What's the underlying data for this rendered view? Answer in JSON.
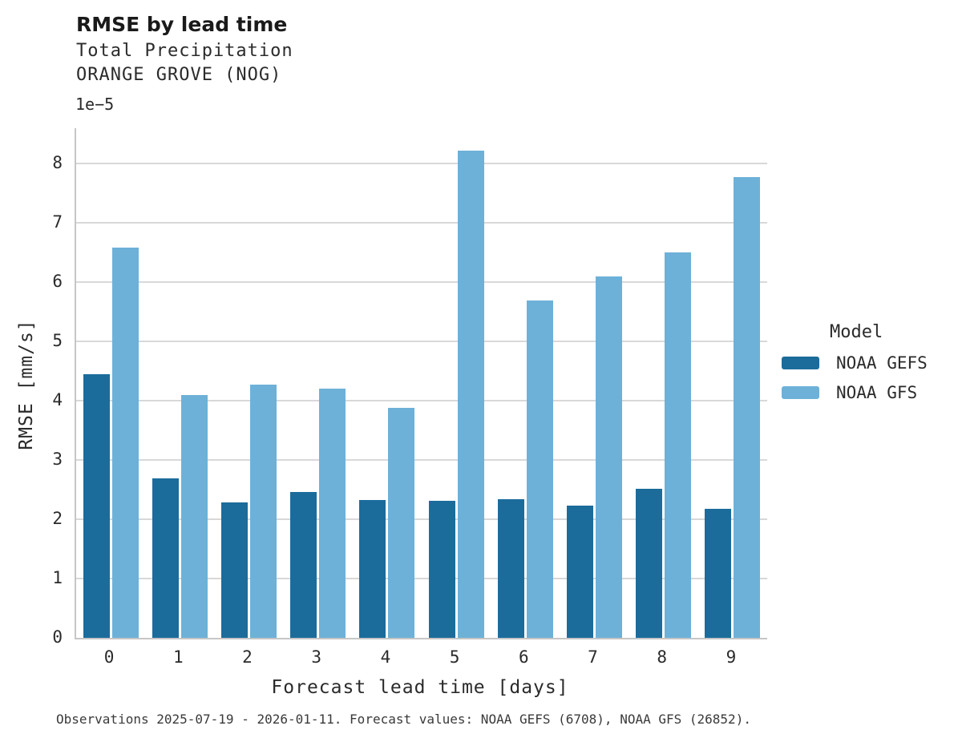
{
  "caption": "Observations 2025-07-19 - 2026-01-11. Forecast values: NOAA GEFS (6708), NOAA GFS (26852).",
  "legend": {
    "title": "Model"
  },
  "chart_data": {
    "type": "bar",
    "title": "RMSE by lead time",
    "subtitle": "Total Precipitation",
    "station": "ORANGE GROVE (NOG)",
    "xlabel": "Forecast lead time [days]",
    "ylabel": "RMSE [mm/s]",
    "y_offset_label": "1e−5",
    "y_unit_scale": "values are ×1e-5 mm/s",
    "categories": [
      "0",
      "1",
      "2",
      "3",
      "4",
      "5",
      "6",
      "7",
      "8",
      "9"
    ],
    "series": [
      {
        "name": "NOAA GEFS",
        "color": "#1b6c9b",
        "values_e5": [
          4.45,
          2.69,
          2.28,
          2.46,
          2.33,
          2.31,
          2.34,
          2.23,
          2.52,
          2.18
        ]
      },
      {
        "name": "NOAA GFS",
        "color": "#6db1d8",
        "values_e5": [
          6.59,
          4.1,
          4.27,
          4.2,
          3.88,
          8.22,
          5.69,
          6.1,
          6.51,
          7.78
        ]
      }
    ],
    "yticks": [
      0,
      1,
      2,
      3,
      4,
      5,
      6,
      7,
      8
    ],
    "ylim_e5": [
      0,
      8.6
    ],
    "grid": "horizontal",
    "legend_position": "center-right",
    "colors": {
      "grid": "#d8d8d8",
      "spine": "#c6c6c6",
      "text": "#2b2b2b"
    }
  }
}
